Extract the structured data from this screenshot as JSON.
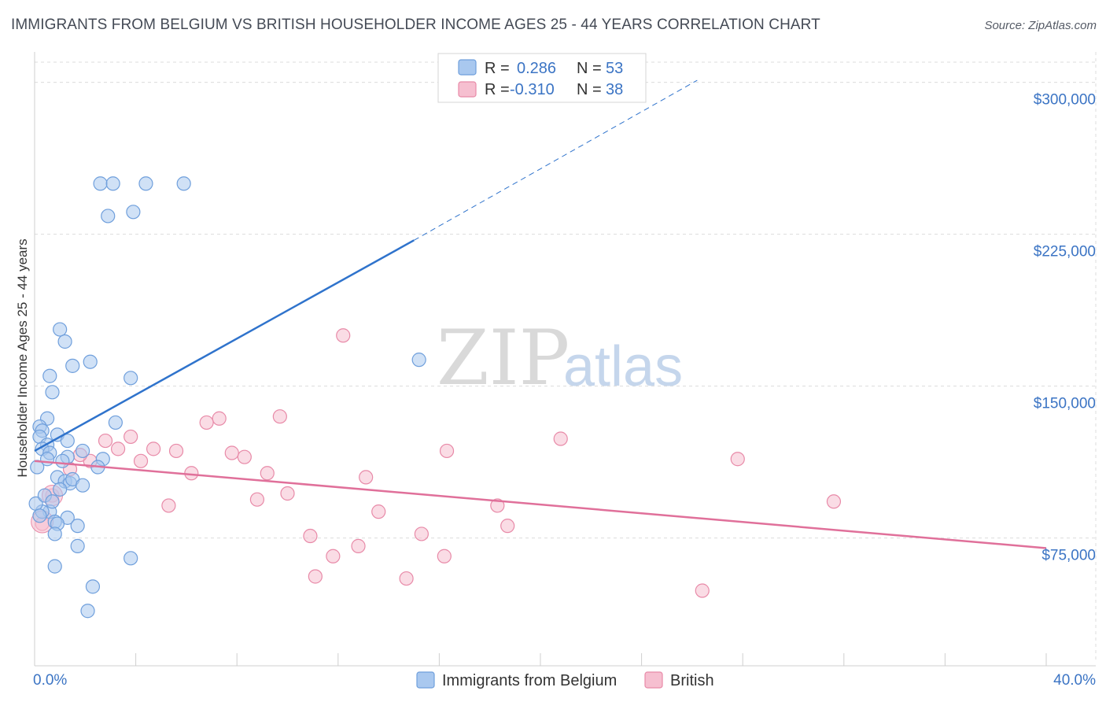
{
  "title": "IMMIGRANTS FROM BELGIUM VS BRITISH HOUSEHOLDER INCOME AGES 25 - 44 YEARS CORRELATION CHART",
  "source": "Source: ZipAtlas.com",
  "watermark": {
    "zip": "ZIP",
    "atlas": "atlas"
  },
  "colors": {
    "blue_fill": "#a9c8ef",
    "blue_stroke": "#6f9fdc",
    "blue_line": "#2f73cc",
    "pink_fill": "#f6bfd0",
    "pink_stroke": "#e88aa8",
    "pink_line": "#e0709a",
    "tick_text": "#3b74c4",
    "grid": "#dcdcdc"
  },
  "legend": {
    "rows": [
      {
        "r_label": "R =",
        "r_value": "0.286",
        "n_label": "N =",
        "n_value": "53"
      },
      {
        "r_label": "R =",
        "r_value": "-0.310",
        "n_label": "N =",
        "n_value": "38"
      }
    ]
  },
  "chart_data": {
    "type": "scatter",
    "title": "IMMIGRANTS FROM BELGIUM VS BRITISH HOUSEHOLDER INCOME AGES 25 - 44 YEARS CORRELATION CHART",
    "xlabel": "",
    "ylabel": "Householder Income Ages 25 - 44 years",
    "xlim": [
      0,
      40
    ],
    "ylim": [
      15000,
      315000
    ],
    "x_tick_labels": [
      {
        "value": 0,
        "label": "0.0%"
      },
      {
        "value": 40,
        "label": "40.0%"
      }
    ],
    "y_ticks": [
      {
        "value": 75000,
        "label": "$75,000"
      },
      {
        "value": 150000,
        "label": "$150,000"
      },
      {
        "value": 225000,
        "label": "$225,000"
      },
      {
        "value": 300000,
        "label": "$300,000"
      }
    ],
    "grid": true,
    "legend_position": "top-center",
    "series": [
      {
        "name": "Immigrants from Belgium",
        "R": 0.286,
        "N": 53,
        "trend": {
          "x0": 0.0,
          "y0": 118000,
          "x1": 15.0,
          "y1": 222000,
          "dashed_to_x": 26.2,
          "dashed_to_y": 301000
        },
        "points": [
          [
            2.6,
            250000
          ],
          [
            3.1,
            250000
          ],
          [
            4.4,
            250000
          ],
          [
            5.9,
            250000
          ],
          [
            2.9,
            234000
          ],
          [
            3.9,
            236000
          ],
          [
            1.0,
            178000
          ],
          [
            1.2,
            172000
          ],
          [
            2.2,
            162000
          ],
          [
            1.5,
            160000
          ],
          [
            15.2,
            163000
          ],
          [
            0.6,
            155000
          ],
          [
            3.8,
            154000
          ],
          [
            0.7,
            147000
          ],
          [
            0.5,
            134000
          ],
          [
            3.2,
            132000
          ],
          [
            0.2,
            130000
          ],
          [
            0.3,
            128000
          ],
          [
            0.2,
            125000
          ],
          [
            0.9,
            126000
          ],
          [
            1.3,
            123000
          ],
          [
            0.5,
            121000
          ],
          [
            0.3,
            119000
          ],
          [
            0.6,
            117000
          ],
          [
            1.9,
            118000
          ],
          [
            0.5,
            114000
          ],
          [
            1.3,
            115000
          ],
          [
            1.1,
            113000
          ],
          [
            2.7,
            114000
          ],
          [
            0.1,
            110000
          ],
          [
            2.5,
            110000
          ],
          [
            0.9,
            105000
          ],
          [
            1.2,
            103000
          ],
          [
            1.4,
            102000
          ],
          [
            1.5,
            104000
          ],
          [
            1.9,
            101000
          ],
          [
            0.6,
            88000
          ],
          [
            0.3,
            88000
          ],
          [
            1.3,
            85000
          ],
          [
            0.8,
            83000
          ],
          [
            0.9,
            82000
          ],
          [
            1.7,
            81000
          ],
          [
            0.8,
            77000
          ],
          [
            1.7,
            71000
          ],
          [
            3.8,
            65000
          ],
          [
            0.8,
            61000
          ],
          [
            2.3,
            51000
          ],
          [
            2.1,
            39000
          ],
          [
            0.05,
            92000
          ],
          [
            0.4,
            96000
          ],
          [
            1.0,
            99000
          ],
          [
            0.7,
            93000
          ],
          [
            0.2,
            86000
          ]
        ]
      },
      {
        "name": "British",
        "R": -0.31,
        "N": 38,
        "trend": {
          "x0": 0.0,
          "y0": 113000,
          "x1": 40.0,
          "y1": 70000
        },
        "points": [
          [
            12.2,
            175000
          ],
          [
            9.7,
            135000
          ],
          [
            7.3,
            134000
          ],
          [
            6.8,
            132000
          ],
          [
            3.8,
            125000
          ],
          [
            2.8,
            123000
          ],
          [
            20.8,
            124000
          ],
          [
            3.3,
            119000
          ],
          [
            4.7,
            119000
          ],
          [
            5.6,
            118000
          ],
          [
            16.3,
            118000
          ],
          [
            7.8,
            117000
          ],
          [
            8.3,
            115000
          ],
          [
            4.2,
            113000
          ],
          [
            2.2,
            113000
          ],
          [
            1.8,
            116000
          ],
          [
            27.8,
            114000
          ],
          [
            6.2,
            107000
          ],
          [
            9.2,
            107000
          ],
          [
            13.1,
            105000
          ],
          [
            1.4,
            109000
          ],
          [
            10.0,
            97000
          ],
          [
            8.8,
            94000
          ],
          [
            5.3,
            91000
          ],
          [
            18.3,
            91000
          ],
          [
            31.6,
            93000
          ],
          [
            13.6,
            88000
          ],
          [
            18.7,
            81000
          ],
          [
            0.7,
            96000
          ],
          [
            0.3,
            82000
          ],
          [
            10.9,
            76000
          ],
          [
            15.3,
            77000
          ],
          [
            12.8,
            71000
          ],
          [
            11.8,
            66000
          ],
          [
            16.2,
            66000
          ],
          [
            11.1,
            56000
          ],
          [
            14.7,
            55000
          ],
          [
            26.4,
            49000
          ]
        ]
      }
    ]
  }
}
